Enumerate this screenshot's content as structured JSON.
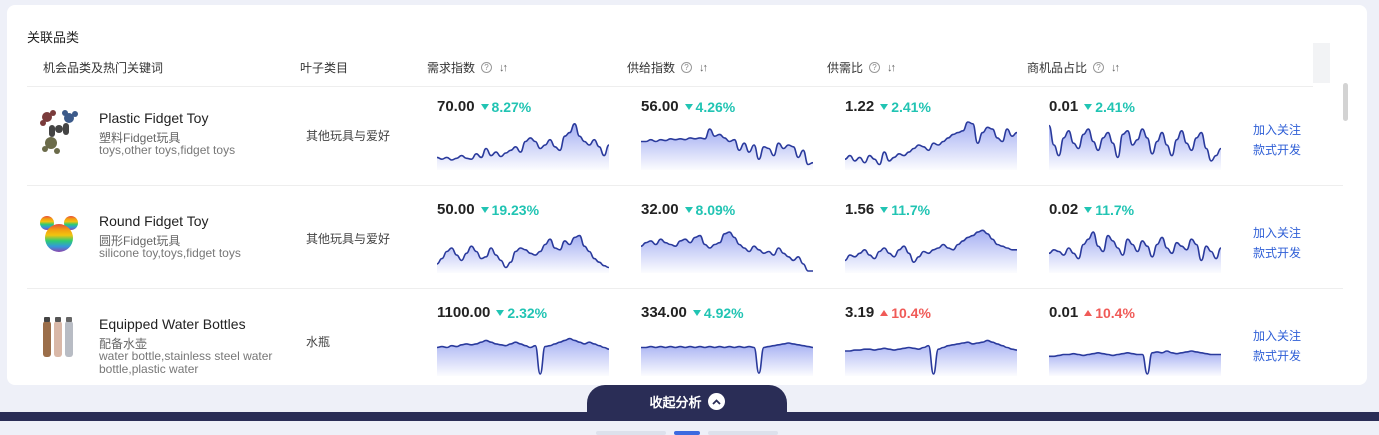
{
  "section_title": "关联品类",
  "columns": {
    "category": "机会品类及热门关键词",
    "leaf": "叶子类目",
    "demand": "需求指数",
    "supply": "供给指数",
    "ratio": "供需比",
    "opportunity": "商机品占比"
  },
  "rows": [
    {
      "name": "Plastic Fidget Toy",
      "name_cn": "塑料Fidget玩具",
      "keywords": "toys,other toys,fidget toys",
      "leaf": "其他玩具与爱好",
      "metrics": [
        {
          "value": "70.00",
          "change": "8.27%",
          "direction": "down",
          "series": [
            12,
            10,
            12,
            9,
            11,
            14,
            11,
            10,
            16,
            12,
            22,
            14,
            18,
            13,
            17,
            20,
            24,
            18,
            30,
            34,
            30,
            22,
            26,
            32,
            24,
            20,
            36,
            40,
            50,
            36,
            30,
            26,
            32,
            24,
            14,
            26
          ]
        },
        {
          "value": "56.00",
          "change": "4.26%",
          "direction": "down",
          "series": [
            30,
            30,
            32,
            30,
            32,
            31,
            33,
            32,
            33,
            32,
            34,
            33,
            34,
            33,
            44,
            36,
            38,
            34,
            30,
            32,
            20,
            28,
            18,
            26,
            10,
            24,
            22,
            14,
            28,
            22,
            26,
            24,
            12,
            20,
            4,
            6
          ]
        },
        {
          "value": "1.22",
          "change": "2.41%",
          "direction": "down",
          "series": [
            10,
            14,
            8,
            12,
            6,
            14,
            10,
            4,
            18,
            8,
            12,
            16,
            14,
            18,
            22,
            26,
            24,
            20,
            28,
            26,
            30,
            34,
            38,
            40,
            42,
            52,
            50,
            28,
            40,
            46,
            44,
            34,
            30,
            44,
            36,
            40
          ]
        },
        {
          "value": "0.01",
          "change": "2.41%",
          "direction": "down",
          "series": [
            48,
            26,
            14,
            34,
            42,
            28,
            22,
            38,
            44,
            30,
            20,
            34,
            40,
            28,
            12,
            38,
            42,
            26,
            32,
            44,
            34,
            16,
            30,
            40,
            26,
            14,
            32,
            42,
            28,
            20,
            34,
            40,
            22,
            8,
            14,
            22
          ]
        }
      ]
    },
    {
      "name": "Round Fidget Toy",
      "name_cn": "圆形Fidget玩具",
      "keywords": "silicone toy,toys,fidget toys",
      "leaf": "其他玩具与爱好",
      "metrics": [
        {
          "value": "50.00",
          "change": "19.23%",
          "direction": "down",
          "series": [
            8,
            14,
            22,
            26,
            18,
            12,
            20,
            28,
            22,
            14,
            16,
            26,
            18,
            12,
            4,
            10,
            22,
            26,
            24,
            20,
            18,
            22,
            30,
            36,
            26,
            24,
            34,
            30,
            38,
            40,
            28,
            22,
            14,
            10,
            6,
            4
          ]
        },
        {
          "value": "32.00",
          "change": "8.09%",
          "direction": "down",
          "series": [
            28,
            32,
            34,
            30,
            36,
            32,
            30,
            28,
            34,
            36,
            32,
            38,
            40,
            30,
            26,
            30,
            32,
            42,
            44,
            38,
            30,
            26,
            22,
            28,
            24,
            20,
            22,
            18,
            26,
            20,
            16,
            12,
            16,
            8,
            0,
            0
          ]
        },
        {
          "value": "1.56",
          "change": "11.7%",
          "direction": "down",
          "series": [
            12,
            18,
            16,
            20,
            24,
            18,
            14,
            22,
            26,
            20,
            16,
            24,
            28,
            20,
            10,
            16,
            22,
            20,
            24,
            26,
            30,
            26,
            24,
            30,
            34,
            38,
            40,
            44,
            46,
            42,
            36,
            30,
            28,
            26,
            24,
            24
          ]
        },
        {
          "value": "0.02",
          "change": "11.7%",
          "direction": "down",
          "series": [
            20,
            24,
            22,
            18,
            26,
            20,
            14,
            30,
            36,
            44,
            28,
            22,
            40,
            34,
            26,
            18,
            36,
            30,
            22,
            34,
            28,
            16,
            30,
            38,
            26,
            20,
            32,
            28,
            24,
            36,
            30,
            12,
            28,
            22,
            14,
            26
          ]
        }
      ]
    },
    {
      "name": "Equipped Water Bottles",
      "name_cn": "配备水壶",
      "keywords": "water bottle,stainless steel water bottle,plastic water",
      "leaf": "水瓶",
      "metrics": [
        {
          "value": "1100.00",
          "change": "2.32%",
          "direction": "down",
          "series": [
            30,
            31,
            30,
            32,
            31,
            33,
            34,
            33,
            34,
            36,
            38,
            36,
            34,
            33,
            32,
            34,
            36,
            34,
            32,
            30,
            32,
            0,
            31,
            32,
            34,
            36,
            38,
            40,
            38,
            36,
            34,
            36,
            34,
            32,
            30,
            28
          ]
        },
        {
          "value": "334.00",
          "change": "4.92%",
          "direction": "down",
          "series": [
            30,
            30,
            31,
            30,
            31,
            30,
            31,
            30,
            31,
            30,
            31,
            30,
            31,
            30,
            31,
            30,
            31,
            30,
            31,
            30,
            31,
            30,
            31,
            30,
            1,
            30,
            31,
            32,
            33,
            34,
            35,
            34,
            33,
            32,
            31,
            30
          ]
        },
        {
          "value": "3.19",
          "change": "10.4%",
          "direction": "up",
          "series": [
            26,
            26,
            27,
            27,
            28,
            28,
            27,
            28,
            29,
            28,
            27,
            28,
            29,
            30,
            29,
            28,
            30,
            32,
            0,
            28,
            30,
            32,
            33,
            34,
            35,
            36,
            34,
            35,
            36,
            38,
            36,
            34,
            32,
            30,
            28,
            27
          ]
        },
        {
          "value": "0.01",
          "change": "10.4%",
          "direction": "up",
          "series": [
            20,
            20,
            21,
            22,
            22,
            23,
            22,
            21,
            22,
            23,
            24,
            23,
            22,
            21,
            22,
            23,
            24,
            23,
            22,
            22,
            0,
            24,
            25,
            24,
            26,
            24,
            23,
            24,
            25,
            26,
            25,
            24,
            23,
            22,
            22,
            22
          ]
        }
      ]
    }
  ],
  "actions": {
    "follow": "加入关注",
    "develop": "款式开发"
  },
  "collapse_label": "收起分析",
  "colors": {
    "line": "#2a3a9c",
    "fill": "#5b6ee8",
    "accent": "#2f5fd6",
    "dark": "#2a2d56",
    "down": "#21c4b3",
    "up": "#f05a57"
  }
}
